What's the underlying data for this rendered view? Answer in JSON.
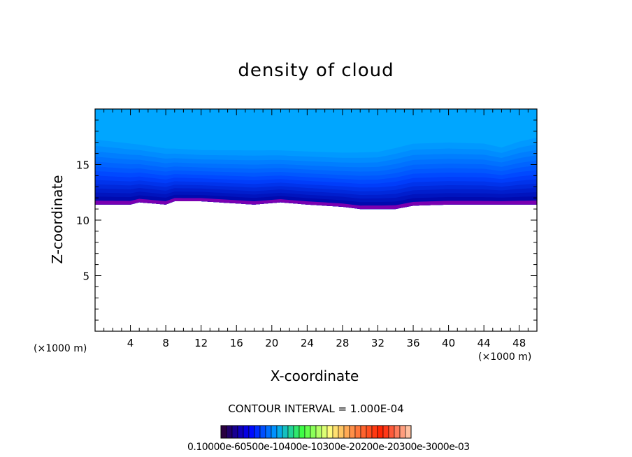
{
  "chart_data": {
    "type": "heatmap",
    "title": "density of cloud",
    "xlabel": "X-coordinate",
    "ylabel": "Z-coordinate",
    "x_unit_label": "(×1000 m)",
    "xlim": [
      0,
      50
    ],
    "ylim": [
      0,
      20
    ],
    "x_ticks": [
      4,
      8,
      12,
      16,
      20,
      24,
      28,
      32,
      36,
      40,
      44,
      48
    ],
    "y_ticks": [
      5,
      10,
      15
    ],
    "contour_interval_text": "CONTOUR INTERVAL = 1.000E-04",
    "colorbar_labels_text": "0.10000e-60500e-10400e-10300e-20200e-20300e-3000e-03",
    "cloud_base": {
      "x": [
        0,
        4,
        5,
        8,
        9,
        12,
        16,
        18,
        21,
        24,
        26,
        28,
        30,
        32,
        34,
        36,
        40,
        44,
        48,
        50
      ],
      "z": [
        11.4,
        11.4,
        11.6,
        11.4,
        11.7,
        11.7,
        11.5,
        11.4,
        11.6,
        11.4,
        11.3,
        11.2,
        11.0,
        11.0,
        11.0,
        11.3,
        11.4,
        11.4,
        11.4,
        11.4
      ]
    },
    "cloud_top": {
      "x": [
        0,
        4,
        8,
        12,
        16,
        20,
        24,
        28,
        32,
        36,
        40,
        44,
        46,
        48,
        50
      ],
      "z": [
        18.0,
        17.6,
        17.1,
        16.9,
        16.9,
        16.9,
        16.8,
        16.7,
        16.8,
        17.6,
        17.7,
        17.6,
        17.2,
        17.8,
        18.2
      ]
    },
    "levels": 14,
    "colors": {
      "background_top": "#00a6ff",
      "mid": "#0040ff",
      "deep": "#0000a0",
      "base": "#7a00b0"
    }
  }
}
